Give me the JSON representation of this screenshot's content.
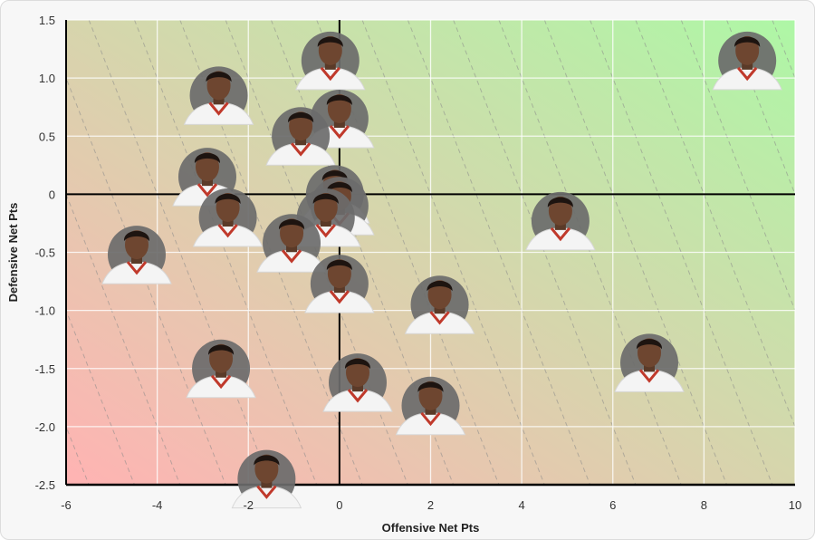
{
  "chart_data": {
    "type": "scatter",
    "xlabel": "Offensive Net Pts",
    "ylabel": "Defensive Net Pts",
    "xlim": [
      -6,
      10
    ],
    "ylim": [
      -2.5,
      1.5
    ],
    "xticks": [
      "-6",
      "-4",
      "-2",
      "0",
      "2",
      "4",
      "6",
      "8",
      "10"
    ],
    "yticks": [
      "-2.5",
      "-2.0",
      "-1.5",
      "-1.0",
      "-0.5",
      "0",
      "0.5",
      "1.0",
      "1.5"
    ],
    "grid": true,
    "background_gradient": {
      "low_left": "#ffb3b3",
      "high_right": "#aef7a6"
    },
    "marker": "player-headshot",
    "points": [
      {
        "x": 8.95,
        "y": 1.15
      },
      {
        "x": -0.2,
        "y": 1.15
      },
      {
        "x": -2.65,
        "y": 0.85
      },
      {
        "x": 0.0,
        "y": 0.65
      },
      {
        "x": -0.85,
        "y": 0.5
      },
      {
        "x": -2.9,
        "y": 0.15
      },
      {
        "x": -0.1,
        "y": 0.0
      },
      {
        "x": 0.0,
        "y": -0.1
      },
      {
        "x": -2.45,
        "y": -0.2
      },
      {
        "x": -0.3,
        "y": -0.2
      },
      {
        "x": 4.85,
        "y": -0.23
      },
      {
        "x": -1.05,
        "y": -0.42
      },
      {
        "x": -4.45,
        "y": -0.52
      },
      {
        "x": 0.0,
        "y": -0.77
      },
      {
        "x": 2.2,
        "y": -0.95
      },
      {
        "x": 6.8,
        "y": -1.45
      },
      {
        "x": -2.6,
        "y": -1.5
      },
      {
        "x": 0.4,
        "y": -1.62
      },
      {
        "x": 2.0,
        "y": -1.82
      },
      {
        "x": -1.6,
        "y": -2.45
      }
    ]
  }
}
